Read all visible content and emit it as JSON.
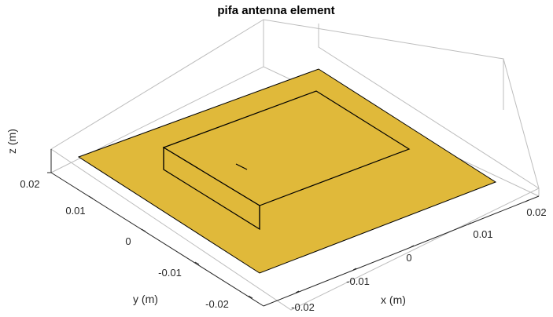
{
  "figure": {
    "title": "pifa antenna element"
  },
  "axes": {
    "x": {
      "label": "x (m)",
      "ticks": [
        "-0.02",
        "-0.01",
        "0",
        "0.01",
        "0.02"
      ]
    },
    "y": {
      "label": "y (m)",
      "ticks": [
        "0.01",
        "0",
        "-0.01",
        "-0.02"
      ]
    },
    "z": {
      "label": "z (m)",
      "ticks": [
        "0.02"
      ]
    }
  },
  "colors": {
    "metal": "#e0b93a",
    "edge": "#000000",
    "box": "#bdbdbd"
  }
}
